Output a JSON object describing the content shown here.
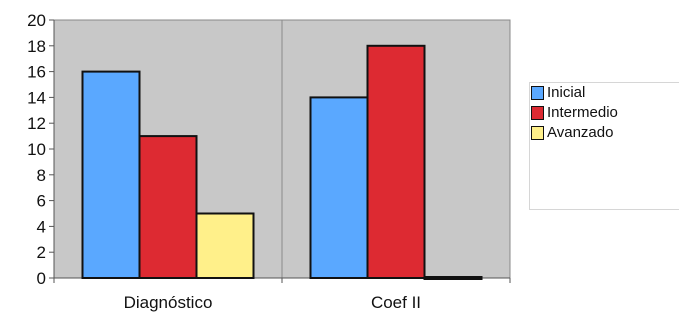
{
  "chart_data": {
    "type": "bar",
    "categories": [
      "Diagnóstico",
      "Coef II"
    ],
    "series": [
      {
        "name": "Inicial",
        "values": [
          16,
          14
        ],
        "color": "#5aa8ff"
      },
      {
        "name": "Intermedio",
        "values": [
          11,
          18
        ],
        "color": "#dd2a32"
      },
      {
        "name": "Avanzado",
        "values": [
          5,
          0
        ],
        "color": "#fff08a"
      }
    ],
    "yticks": [
      0,
      2,
      4,
      6,
      8,
      10,
      12,
      14,
      16,
      18,
      20
    ],
    "ylim": [
      0,
      20
    ],
    "title": "",
    "xlabel": "",
    "ylabel": "",
    "legend_position": "right",
    "grid": false,
    "plot_background": "#c8c8c8"
  }
}
